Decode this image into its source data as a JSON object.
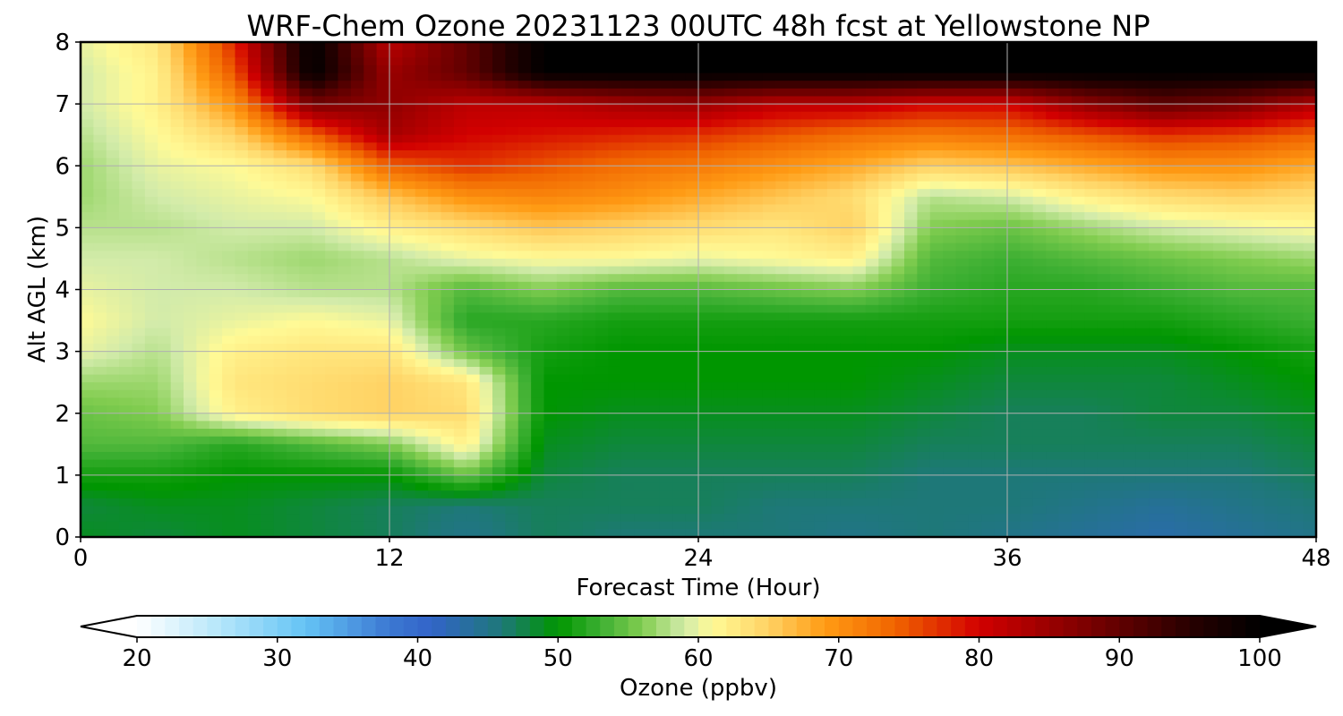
{
  "chart_data": {
    "type": "heatmap",
    "title": "WRF-Chem Ozone  20231123 00UTC 48h fcst at Yellowstone NP",
    "xlabel": "Forecast Time (Hour)",
    "ylabel": "Alt AGL (km)",
    "xlim": [
      0,
      48
    ],
    "ylim": [
      0,
      8
    ],
    "xticks": [
      "0",
      "12",
      "24",
      "36",
      "48"
    ],
    "yticks": [
      "0",
      "1",
      "2",
      "3",
      "4",
      "5",
      "6",
      "7",
      "8"
    ],
    "grid": true,
    "x": [
      0,
      3,
      6,
      9,
      12,
      15,
      18,
      21,
      24,
      27,
      30,
      33,
      36,
      39,
      42,
      45,
      48
    ],
    "y": [
      0,
      0.5,
      1,
      1.5,
      2,
      2.5,
      3,
      3.5,
      4,
      4.5,
      5,
      5.5,
      6,
      6.5,
      7,
      7.5,
      8
    ],
    "z": [
      [
        49,
        48,
        49,
        48,
        47,
        45,
        47,
        46,
        46,
        46,
        45,
        46,
        45,
        44,
        43,
        44,
        45
      ],
      [
        48,
        49,
        49,
        48,
        47,
        46,
        47,
        47,
        47,
        46,
        46,
        46,
        46,
        45,
        44,
        45,
        46
      ],
      [
        51,
        51,
        50,
        50,
        50,
        55,
        48,
        47,
        47,
        47,
        47,
        46,
        46,
        46,
        46,
        46,
        47
      ],
      [
        54,
        54,
        52,
        54,
        56,
        62,
        49,
        48,
        48,
        48,
        48,
        47,
        47,
        47,
        47,
        47,
        48
      ],
      [
        55,
        56,
        62,
        64,
        65,
        64,
        50,
        49,
        49,
        49,
        49,
        48,
        47,
        47,
        48,
        48,
        49
      ],
      [
        57,
        57,
        63,
        64,
        65,
        63,
        50,
        50,
        50,
        50,
        50,
        49,
        48,
        48,
        48,
        49,
        50
      ],
      [
        60,
        58,
        62,
        63,
        63,
        55,
        51,
        50,
        50,
        50,
        50,
        50,
        49,
        49,
        49,
        50,
        51
      ],
      [
        61,
        59,
        60,
        61,
        60,
        52,
        52,
        51,
        51,
        51,
        51,
        51,
        51,
        51,
        51,
        52,
        53
      ],
      [
        60,
        59,
        59,
        58,
        58,
        54,
        56,
        54,
        54,
        55,
        56,
        53,
        52,
        52,
        53,
        54,
        54
      ],
      [
        59,
        59,
        58,
        57,
        58,
        60,
        61,
        61,
        60,
        61,
        62,
        54,
        53,
        54,
        55,
        56,
        57
      ],
      [
        58,
        58,
        59,
        59,
        62,
        64,
        66,
        65,
        64,
        63,
        65,
        56,
        55,
        57,
        59,
        60,
        61
      ],
      [
        57,
        59,
        60,
        61,
        66,
        70,
        71,
        70,
        68,
        66,
        64,
        58,
        59,
        62,
        64,
        65,
        64
      ],
      [
        57,
        60,
        61,
        64,
        74,
        77,
        75,
        73,
        72,
        70,
        68,
        65,
        66,
        68,
        70,
        70,
        68
      ],
      [
        58,
        61,
        65,
        74,
        84,
        80,
        79,
        78,
        77,
        75,
        73,
        72,
        73,
        75,
        77,
        76,
        74
      ],
      [
        59,
        62,
        70,
        88,
        86,
        82,
        82,
        84,
        85,
        82,
        82,
        80,
        80,
        86,
        90,
        88,
        83
      ],
      [
        59,
        62,
        75,
        100,
        85,
        90,
        100,
        100,
        100,
        100,
        100,
        100,
        100,
        100,
        100,
        100,
        100
      ],
      [
        60,
        63,
        78,
        100,
        82,
        90,
        100,
        100,
        100,
        100,
        100,
        100,
        100,
        100,
        100,
        100,
        100
      ]
    ],
    "colorbar": {
      "label": "Ozone  (ppbv)",
      "min": 20,
      "max": 100,
      "ticks": [
        "20",
        "30",
        "40",
        "50",
        "60",
        "70",
        "80",
        "90",
        "100"
      ],
      "extend": "both",
      "stops": [
        {
          "v": 20,
          "c": "#ffffff"
        },
        {
          "v": 26,
          "c": "#b4e6fa"
        },
        {
          "v": 32,
          "c": "#64c3f5"
        },
        {
          "v": 38,
          "c": "#3c78d2"
        },
        {
          "v": 41,
          "c": "#3264c8"
        },
        {
          "v": 46,
          "c": "#1e7878"
        },
        {
          "v": 50,
          "c": "#009600"
        },
        {
          "v": 53,
          "c": "#3caf32"
        },
        {
          "v": 56,
          "c": "#82cd50"
        },
        {
          "v": 59,
          "c": "#d2ebaa"
        },
        {
          "v": 61,
          "c": "#fffa96"
        },
        {
          "v": 65,
          "c": "#ffd264"
        },
        {
          "v": 69,
          "c": "#ff9b14"
        },
        {
          "v": 74,
          "c": "#f06400"
        },
        {
          "v": 80,
          "c": "#d20000"
        },
        {
          "v": 88,
          "c": "#780000"
        },
        {
          "v": 95,
          "c": "#280000"
        },
        {
          "v": 100,
          "c": "#000000"
        }
      ]
    }
  }
}
